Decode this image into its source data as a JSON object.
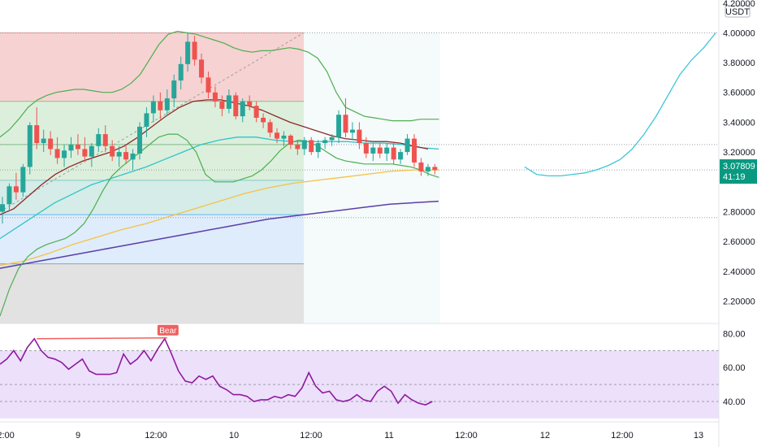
{
  "colors": {
    "up": "#26a69a",
    "down": "#ef5350",
    "bb": "#4caf50",
    "ema_dark": "#8b2a2a",
    "ema_cyan": "#2ec4c9",
    "ema_yellow": "#f5c242",
    "ema_purple": "#5b3fa8",
    "rsi": "#8e1a9e",
    "rsi_band": "#ede0fb",
    "fib_red": "#f6d2d2",
    "fib_green": "#dcefdc",
    "fib_teal": "#d5ece8",
    "fib_blue": "#dfecfb",
    "fib_gray": "#e2e2e2",
    "projection": "#3fc6d8",
    "price_badge": "#089981",
    "bear_label": "#f06060"
  },
  "price_axis": {
    "currency": "USDT",
    "ticks": [
      "4.20000",
      "4.00000",
      "3.80000",
      "3.60000",
      "3.40000",
      "3.20000",
      "2.80000",
      "2.60000",
      "2.40000",
      "2.20000"
    ],
    "current_price": "3.07809",
    "countdown": "41:19"
  },
  "rsi_axis": {
    "ticks": [
      "80.00",
      "60.00",
      "40.00"
    ]
  },
  "time_axis": {
    "labels": [
      "12:00",
      "9",
      "12:00",
      "10",
      "12:00",
      "11",
      "12:00",
      "12",
      "12:00",
      "13"
    ]
  },
  "annotation": {
    "bear_label": "Bear"
  },
  "chart_data": {
    "type": "candlestick",
    "ylim": [
      2.05,
      4.22
    ],
    "rsi_ylim": [
      28,
      86
    ],
    "fib_levels": [
      4.0,
      3.54,
      3.25,
      3.01,
      2.78,
      2.45,
      2.05
    ],
    "candles": [
      [
        2.8,
        2.9,
        2.72,
        2.85
      ],
      [
        2.85,
        2.99,
        2.8,
        2.97
      ],
      [
        2.97,
        3.06,
        2.88,
        2.93
      ],
      [
        2.93,
        3.12,
        2.9,
        3.1
      ],
      [
        3.1,
        3.4,
        3.05,
        3.38
      ],
      [
        3.38,
        3.5,
        3.22,
        3.26
      ],
      [
        3.26,
        3.35,
        3.2,
        3.29
      ],
      [
        3.29,
        3.34,
        3.18,
        3.22
      ],
      [
        3.22,
        3.3,
        3.12,
        3.16
      ],
      [
        3.16,
        3.25,
        3.1,
        3.21
      ],
      [
        3.21,
        3.3,
        3.16,
        3.25
      ],
      [
        3.25,
        3.32,
        3.18,
        3.22
      ],
      [
        3.22,
        3.3,
        3.14,
        3.17
      ],
      [
        3.17,
        3.26,
        3.1,
        3.24
      ],
      [
        3.24,
        3.36,
        3.2,
        3.32
      ],
      [
        3.32,
        3.38,
        3.2,
        3.24
      ],
      [
        3.24,
        3.28,
        3.14,
        3.17
      ],
      [
        3.17,
        3.24,
        3.1,
        3.2
      ],
      [
        3.2,
        3.24,
        3.12,
        3.15
      ],
      [
        3.15,
        3.22,
        3.08,
        3.19
      ],
      [
        3.19,
        3.4,
        3.15,
        3.37
      ],
      [
        3.37,
        3.5,
        3.3,
        3.46
      ],
      [
        3.46,
        3.58,
        3.4,
        3.54
      ],
      [
        3.54,
        3.6,
        3.42,
        3.48
      ],
      [
        3.48,
        3.62,
        3.44,
        3.56
      ],
      [
        3.56,
        3.72,
        3.5,
        3.68
      ],
      [
        3.68,
        3.84,
        3.62,
        3.79
      ],
      [
        3.79,
        4.0,
        3.74,
        3.94
      ],
      [
        3.94,
        3.98,
        3.78,
        3.82
      ],
      [
        3.82,
        3.86,
        3.66,
        3.7
      ],
      [
        3.7,
        3.74,
        3.56,
        3.6
      ],
      [
        3.6,
        3.64,
        3.5,
        3.54
      ],
      [
        3.54,
        3.58,
        3.44,
        3.49
      ],
      [
        3.49,
        3.62,
        3.46,
        3.58
      ],
      [
        3.58,
        3.6,
        3.42,
        3.44
      ],
      [
        3.44,
        3.56,
        3.4,
        3.54
      ],
      [
        3.54,
        3.58,
        3.48,
        3.51
      ],
      [
        3.51,
        3.54,
        3.4,
        3.43
      ],
      [
        3.43,
        3.46,
        3.36,
        3.4
      ],
      [
        3.4,
        3.42,
        3.3,
        3.33
      ],
      [
        3.33,
        3.36,
        3.26,
        3.29
      ],
      [
        3.29,
        3.34,
        3.24,
        3.31
      ],
      [
        3.31,
        3.32,
        3.22,
        3.25
      ],
      [
        3.25,
        3.28,
        3.18,
        3.22
      ],
      [
        3.22,
        3.3,
        3.18,
        3.28
      ],
      [
        3.28,
        3.3,
        3.18,
        3.2
      ],
      [
        3.2,
        3.28,
        3.16,
        3.26
      ],
      [
        3.26,
        3.3,
        3.22,
        3.28
      ],
      [
        3.28,
        3.32,
        3.24,
        3.3
      ],
      [
        3.3,
        3.48,
        3.26,
        3.45
      ],
      [
        3.45,
        3.56,
        3.3,
        3.33
      ],
      [
        3.33,
        3.4,
        3.28,
        3.35
      ],
      [
        3.35,
        3.4,
        3.22,
        3.26
      ],
      [
        3.26,
        3.3,
        3.16,
        3.19
      ],
      [
        3.19,
        3.26,
        3.14,
        3.23
      ],
      [
        3.23,
        3.26,
        3.16,
        3.19
      ],
      [
        3.19,
        3.26,
        3.14,
        3.23
      ],
      [
        3.23,
        3.26,
        3.12,
        3.15
      ],
      [
        3.15,
        3.22,
        3.12,
        3.2
      ],
      [
        3.2,
        3.32,
        3.18,
        3.29
      ],
      [
        3.29,
        3.32,
        3.1,
        3.13
      ],
      [
        3.13,
        3.16,
        3.04,
        3.07
      ],
      [
        3.07,
        3.12,
        3.04,
        3.1
      ],
      [
        3.1,
        3.12,
        3.05,
        3.08
      ]
    ],
    "rsi_values": [
      62,
      65,
      70,
      64,
      72,
      77,
      70,
      66,
      65,
      63,
      59,
      62,
      65,
      58,
      56,
      56,
      56,
      57,
      68,
      62,
      65,
      70,
      64,
      71,
      77,
      68,
      58,
      52,
      51,
      55,
      53,
      55,
      49,
      47,
      44,
      44,
      43,
      40,
      41,
      41,
      43,
      42,
      44,
      43,
      48,
      57,
      49,
      45,
      46,
      41,
      40,
      41,
      44,
      41,
      40,
      46,
      49,
      46,
      39,
      44,
      41,
      39,
      38,
      40
    ],
    "bb_upper": [
      3.3,
      3.35,
      3.42,
      3.5,
      3.55,
      3.58,
      3.6,
      3.61,
      3.62,
      3.62,
      3.61,
      3.6,
      3.6,
      3.62,
      3.66,
      3.72,
      3.82,
      3.92,
      3.99,
      4.01,
      4.0,
      3.99,
      3.97,
      3.95,
      3.93,
      3.9,
      3.88,
      3.87,
      3.88,
      3.88,
      3.89,
      3.9,
      3.89,
      3.87,
      3.83,
      3.74,
      3.6,
      3.5,
      3.47,
      3.44,
      3.43,
      3.42,
      3.41,
      3.41,
      3.41,
      3.42,
      3.42,
      3.42
    ],
    "bb_lower": [
      2.1,
      2.28,
      2.42,
      2.5,
      2.55,
      2.58,
      2.6,
      2.62,
      2.66,
      2.72,
      2.82,
      2.94,
      3.04,
      3.1,
      3.15,
      3.2,
      3.25,
      3.3,
      3.32,
      3.32,
      3.28,
      3.2,
      3.05,
      3.0,
      3.0,
      3.0,
      3.02,
      3.04,
      3.08,
      3.14,
      3.21,
      3.26,
      3.28,
      3.27,
      3.24,
      3.2,
      3.16,
      3.14,
      3.13,
      3.12,
      3.12,
      3.12,
      3.12,
      3.11,
      3.1,
      3.08,
      3.05,
      3.03
    ],
    "ema_dark": [
      2.78,
      2.82,
      2.9,
      2.98,
      3.05,
      3.1,
      3.14,
      3.17,
      3.2,
      3.24,
      3.3,
      3.37,
      3.44,
      3.5,
      3.54,
      3.55,
      3.55,
      3.53,
      3.51,
      3.48,
      3.44,
      3.4,
      3.37,
      3.34,
      3.31,
      3.29,
      3.28,
      3.27,
      3.27,
      3.26,
      3.24,
      3.22
    ],
    "ema_cyan": [
      2.62,
      2.7,
      2.78,
      2.86,
      2.92,
      2.98,
      3.02,
      3.06,
      3.1,
      3.15,
      3.2,
      3.25,
      3.28,
      3.3,
      3.3,
      3.28,
      3.27,
      3.27,
      3.27,
      3.27,
      3.26,
      3.26,
      3.25,
      3.23,
      3.22
    ],
    "ema_yellow": [
      2.44,
      2.47,
      2.52,
      2.58,
      2.63,
      2.68,
      2.72,
      2.77,
      2.82,
      2.87,
      2.92,
      2.96,
      2.99,
      3.01,
      3.03,
      3.05,
      3.07,
      3.08,
      3.08
    ],
    "ema_purple": [
      2.42,
      2.45,
      2.48,
      2.51,
      2.54,
      2.57,
      2.6,
      2.63,
      2.66,
      2.69,
      2.72,
      2.75,
      2.77,
      2.79,
      2.81,
      2.83,
      2.85,
      2.86,
      2.87
    ],
    "projection": [
      3.1,
      3.05,
      3.04,
      3.04,
      3.05,
      3.06,
      3.08,
      3.11,
      3.15,
      3.22,
      3.32,
      3.44,
      3.58,
      3.72,
      3.82,
      3.9,
      4.0
    ]
  }
}
